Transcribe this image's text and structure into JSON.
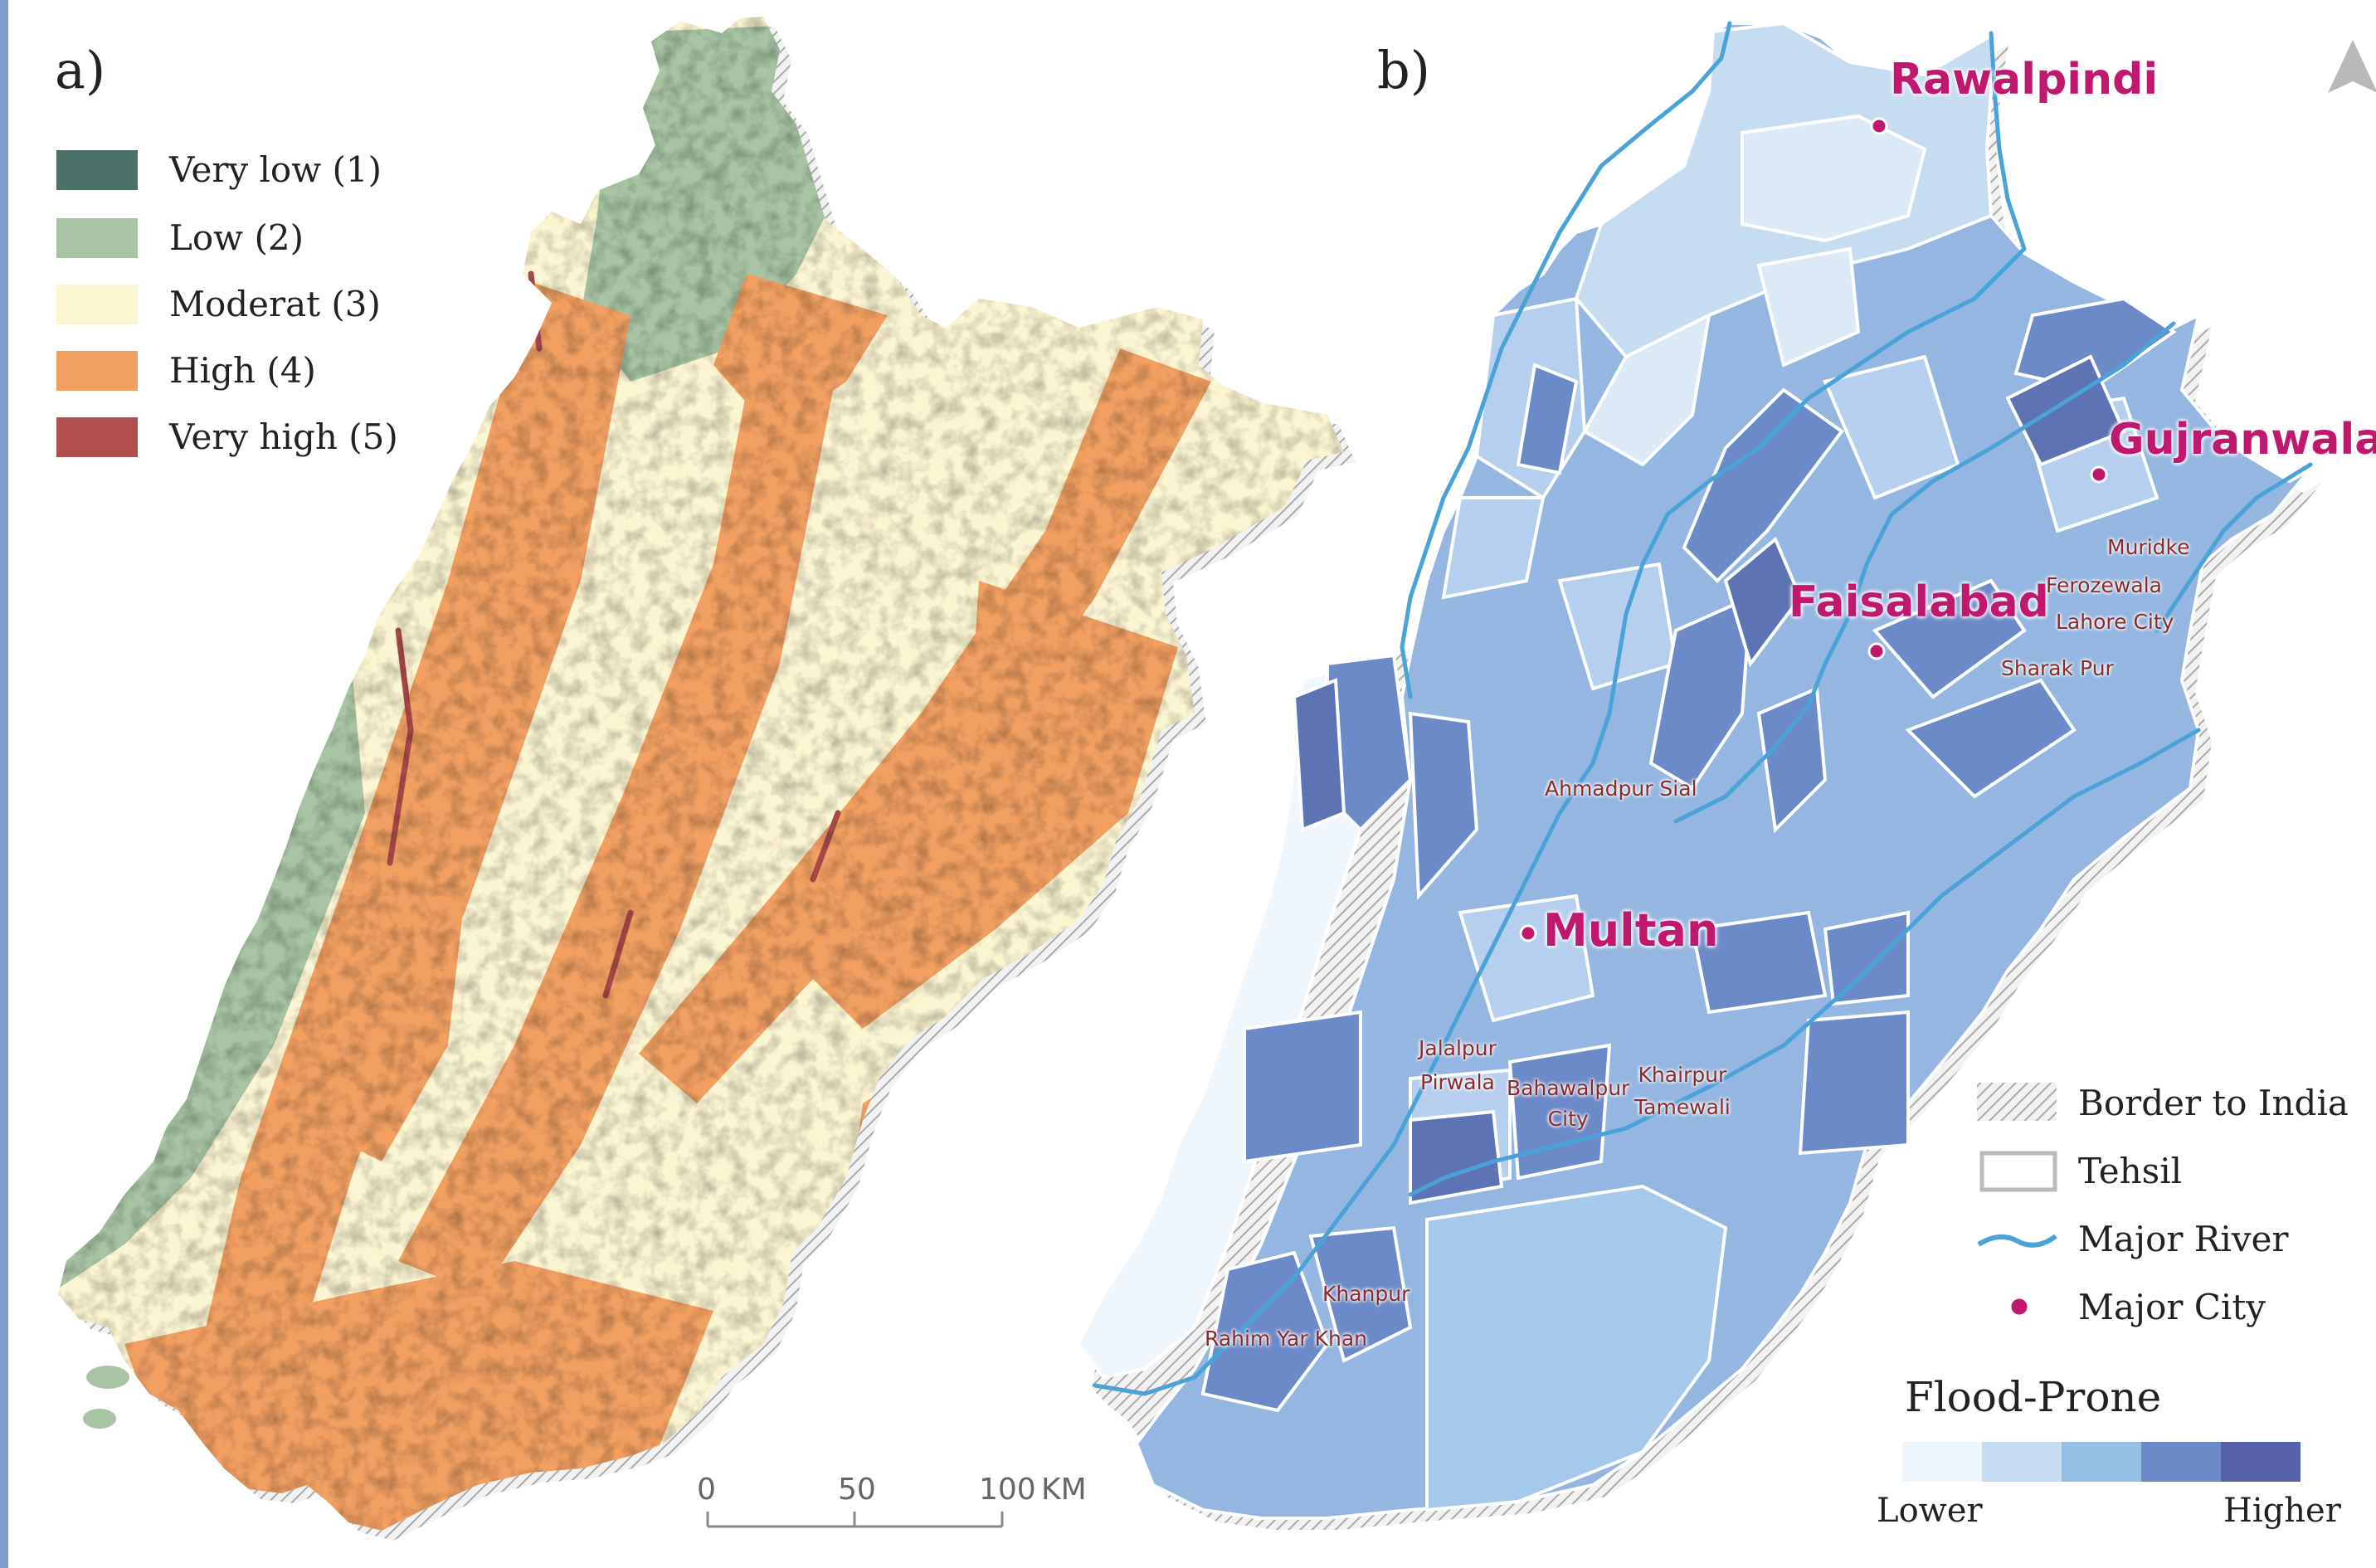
{
  "panel_a": {
    "label": "a)",
    "legend": [
      {
        "label": "Very low  (1)",
        "color": "#4a7068"
      },
      {
        "label": "Low (2)",
        "color": "#a8c4a4"
      },
      {
        "label": "Moderat (3)",
        "color": "#fcf5d2"
      },
      {
        "label": "High (4)",
        "color": "#f2a062"
      },
      {
        "label": "Very high (5)",
        "color": "#b04f4d"
      }
    ],
    "scale_bar": {
      "ticks": [
        "0",
        "50",
        "100"
      ],
      "unit": "KM"
    }
  },
  "panel_b": {
    "label": "b)",
    "major_cities": [
      "Rawalpindi",
      "Gujranwala",
      "Faisalabad",
      "Multan"
    ],
    "towns": {
      "muridke": "Muridke",
      "ferozewala": "Ferozewala",
      "lahore_city": "Lahore City",
      "sharak_pur": "Sharak Pur",
      "ahmadpur_sial": "Ahmadpur Sial",
      "jalalpur_pirwala": [
        "Jalalpur",
        "Pirwala"
      ],
      "bahawalpur_city": [
        "Bahawalpur",
        "City"
      ],
      "khairpur_tamewali": [
        "Khairpur",
        "Tamewali"
      ],
      "khanpur": "Khanpur",
      "rahim_yar_khan": "Rahim Yar Khan"
    },
    "legend": {
      "border": "Border to India",
      "tehsil": "Tehsil",
      "river": "Major River",
      "city": "Major City"
    },
    "flood_prone": {
      "title": "Flood-Prone",
      "low_label": "Lower",
      "high_label": "Higher",
      "colors": [
        "#eff6fc",
        "#c6dcf1",
        "#94c0e6",
        "#6d8ac8",
        "#5862a8"
      ]
    },
    "colors": {
      "river": "#4aa3d8",
      "city": "#c0186f",
      "north_arrow": "#b9b9b9"
    }
  }
}
